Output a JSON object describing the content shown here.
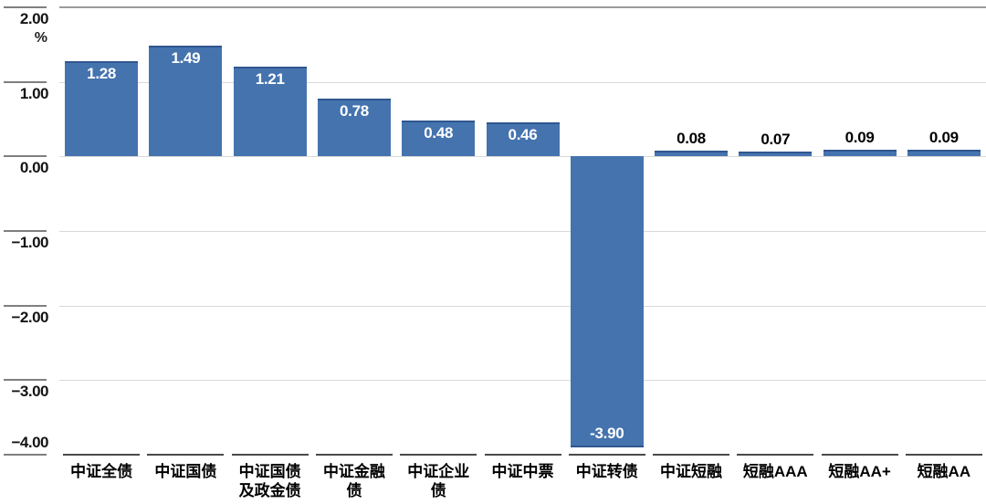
{
  "chart_data": {
    "type": "bar",
    "categories": [
      "中证全债",
      "中证国债",
      "中证国债及政金债",
      "中证金融债",
      "中证企业债",
      "中证中票",
      "中证转债",
      "中证短融",
      "短融AAA",
      "短融AA+",
      "短融AA"
    ],
    "x_tick_display": [
      "中证全债",
      "中证国债",
      "中证国债\n及政金债",
      "中证金融\n债",
      "中证企业\n债",
      "中证中票",
      "中证转债",
      "中证短融",
      "短融AAA",
      "短融AA+",
      "短融AA"
    ],
    "values": [
      1.28,
      1.49,
      1.21,
      0.78,
      0.48,
      0.46,
      -3.9,
      0.08,
      0.07,
      0.09,
      0.09
    ],
    "value_labels": [
      "1.28",
      "1.49",
      "1.21",
      "0.78",
      "0.48",
      "0.46",
      "-3.90",
      "0.08",
      "0.07",
      "0.09",
      "0.09"
    ],
    "title": "",
    "xlabel": "",
    "ylabel": "%",
    "unit_label": "%",
    "ylim": [
      -4.0,
      2.0
    ],
    "y_ticks": [
      2.0,
      1.0,
      0.0,
      -1.0,
      -2.0,
      -3.0,
      -4.0
    ],
    "y_tick_labels": [
      "2.00",
      "1.00",
      "0.00",
      "−1.00",
      "−2.00",
      "−3.00",
      "−4.00"
    ],
    "grid": true,
    "legend": false,
    "colors": {
      "bar_fill": "#4573ae",
      "bar_edge": "#30568f",
      "label_inside": "#ffffff",
      "label_outside": "#000000",
      "gridline": "#d9d9d9",
      "axis_dark": "#4a4a4a",
      "tick_gray": "#7f7f7f"
    }
  }
}
